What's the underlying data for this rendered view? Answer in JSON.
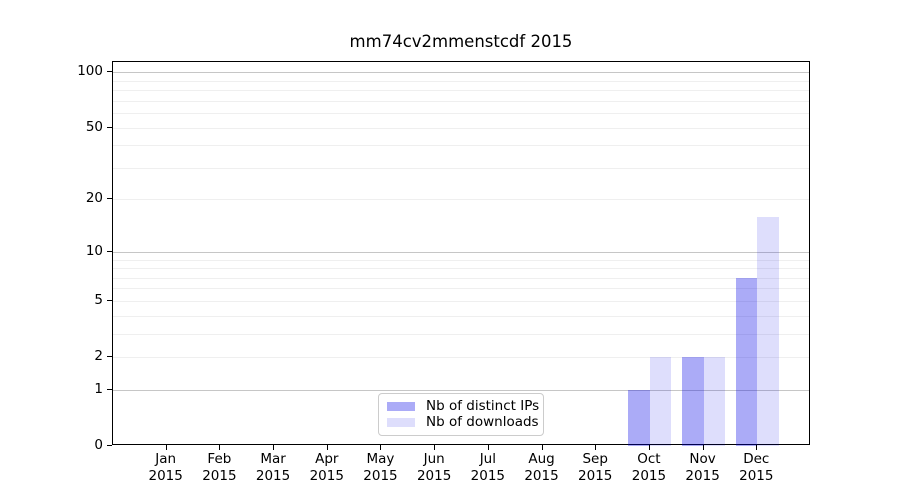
{
  "title": "mm74cv2mmenstcdf 2015",
  "colors": {
    "distinct_ips": "rgba(0,0,230,0.33)",
    "downloads": "rgba(0,0,230,0.13)",
    "grid_major": "#c6c6c6",
    "grid_minor": "#efefef",
    "axis": "#000000",
    "legend_border": "#cccccc"
  },
  "legend": {
    "items": [
      {
        "label": "Nb of distinct IPs"
      },
      {
        "label": "Nb of downloads"
      }
    ]
  },
  "chart_data": {
    "type": "bar",
    "title": "mm74cv2mmenstcdf 2015",
    "x_tick_months": [
      "Jan",
      "Feb",
      "Mar",
      "Apr",
      "May",
      "Jun",
      "Jul",
      "Aug",
      "Sep",
      "Oct",
      "Nov",
      "Dec"
    ],
    "x_tick_year": "2015",
    "categories": [
      "Jan 2015",
      "Feb 2015",
      "Mar 2015",
      "Apr 2015",
      "May 2015",
      "Jun 2015",
      "Jul 2015",
      "Aug 2015",
      "Sep 2015",
      "Oct 2015",
      "Nov 2015",
      "Dec 2015"
    ],
    "series": [
      {
        "name": "Nb of distinct IPs",
        "color": "rgba(0,0,230,0.33)",
        "values": [
          0,
          0,
          0,
          0,
          0,
          0,
          0,
          0,
          0,
          1,
          2,
          7
        ]
      },
      {
        "name": "Nb of downloads",
        "color": "rgba(0,0,230,0.13)",
        "values": [
          0,
          0,
          0,
          0,
          0,
          0,
          0,
          0,
          0,
          2,
          2,
          16
        ]
      }
    ],
    "scale": "log1p",
    "y_ticks": [
      0,
      1,
      2,
      5,
      10,
      20,
      50,
      100
    ],
    "y_major_gridlines": [
      1,
      10,
      100
    ],
    "y_minor_gridlines": [
      2,
      3,
      4,
      5,
      6,
      7,
      8,
      9,
      20,
      30,
      40,
      50,
      60,
      70,
      80,
      90
    ],
    "ylim": [
      0,
      113.6
    ],
    "xlabel": "",
    "ylabel": "",
    "grid": "horizontal",
    "legend_position": "lower center-left"
  }
}
